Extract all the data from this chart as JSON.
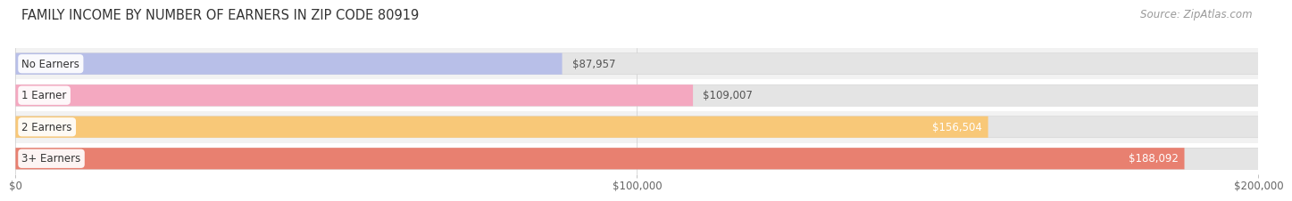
{
  "title": "FAMILY INCOME BY NUMBER OF EARNERS IN ZIP CODE 80919",
  "source": "Source: ZipAtlas.com",
  "categories": [
    "No Earners",
    "1 Earner",
    "2 Earners",
    "3+ Earners"
  ],
  "values": [
    87957,
    109007,
    156504,
    188092
  ],
  "bar_colors": [
    "#b8bfe8",
    "#f4a8c0",
    "#f8c878",
    "#e88070"
  ],
  "value_labels": [
    "$87,957",
    "$109,007",
    "$156,504",
    "$188,092"
  ],
  "xmax": 200000,
  "xtick_labels": [
    "$0",
    "$100,000",
    "$200,000"
  ],
  "background_color": "#ffffff",
  "row_bg_color": "#f2f2f2",
  "bar_bg_color": "#e4e4e4",
  "title_fontsize": 10.5,
  "source_fontsize": 8.5,
  "label_fontsize": 8.5,
  "value_fontsize": 8.5,
  "tick_fontsize": 8.5
}
